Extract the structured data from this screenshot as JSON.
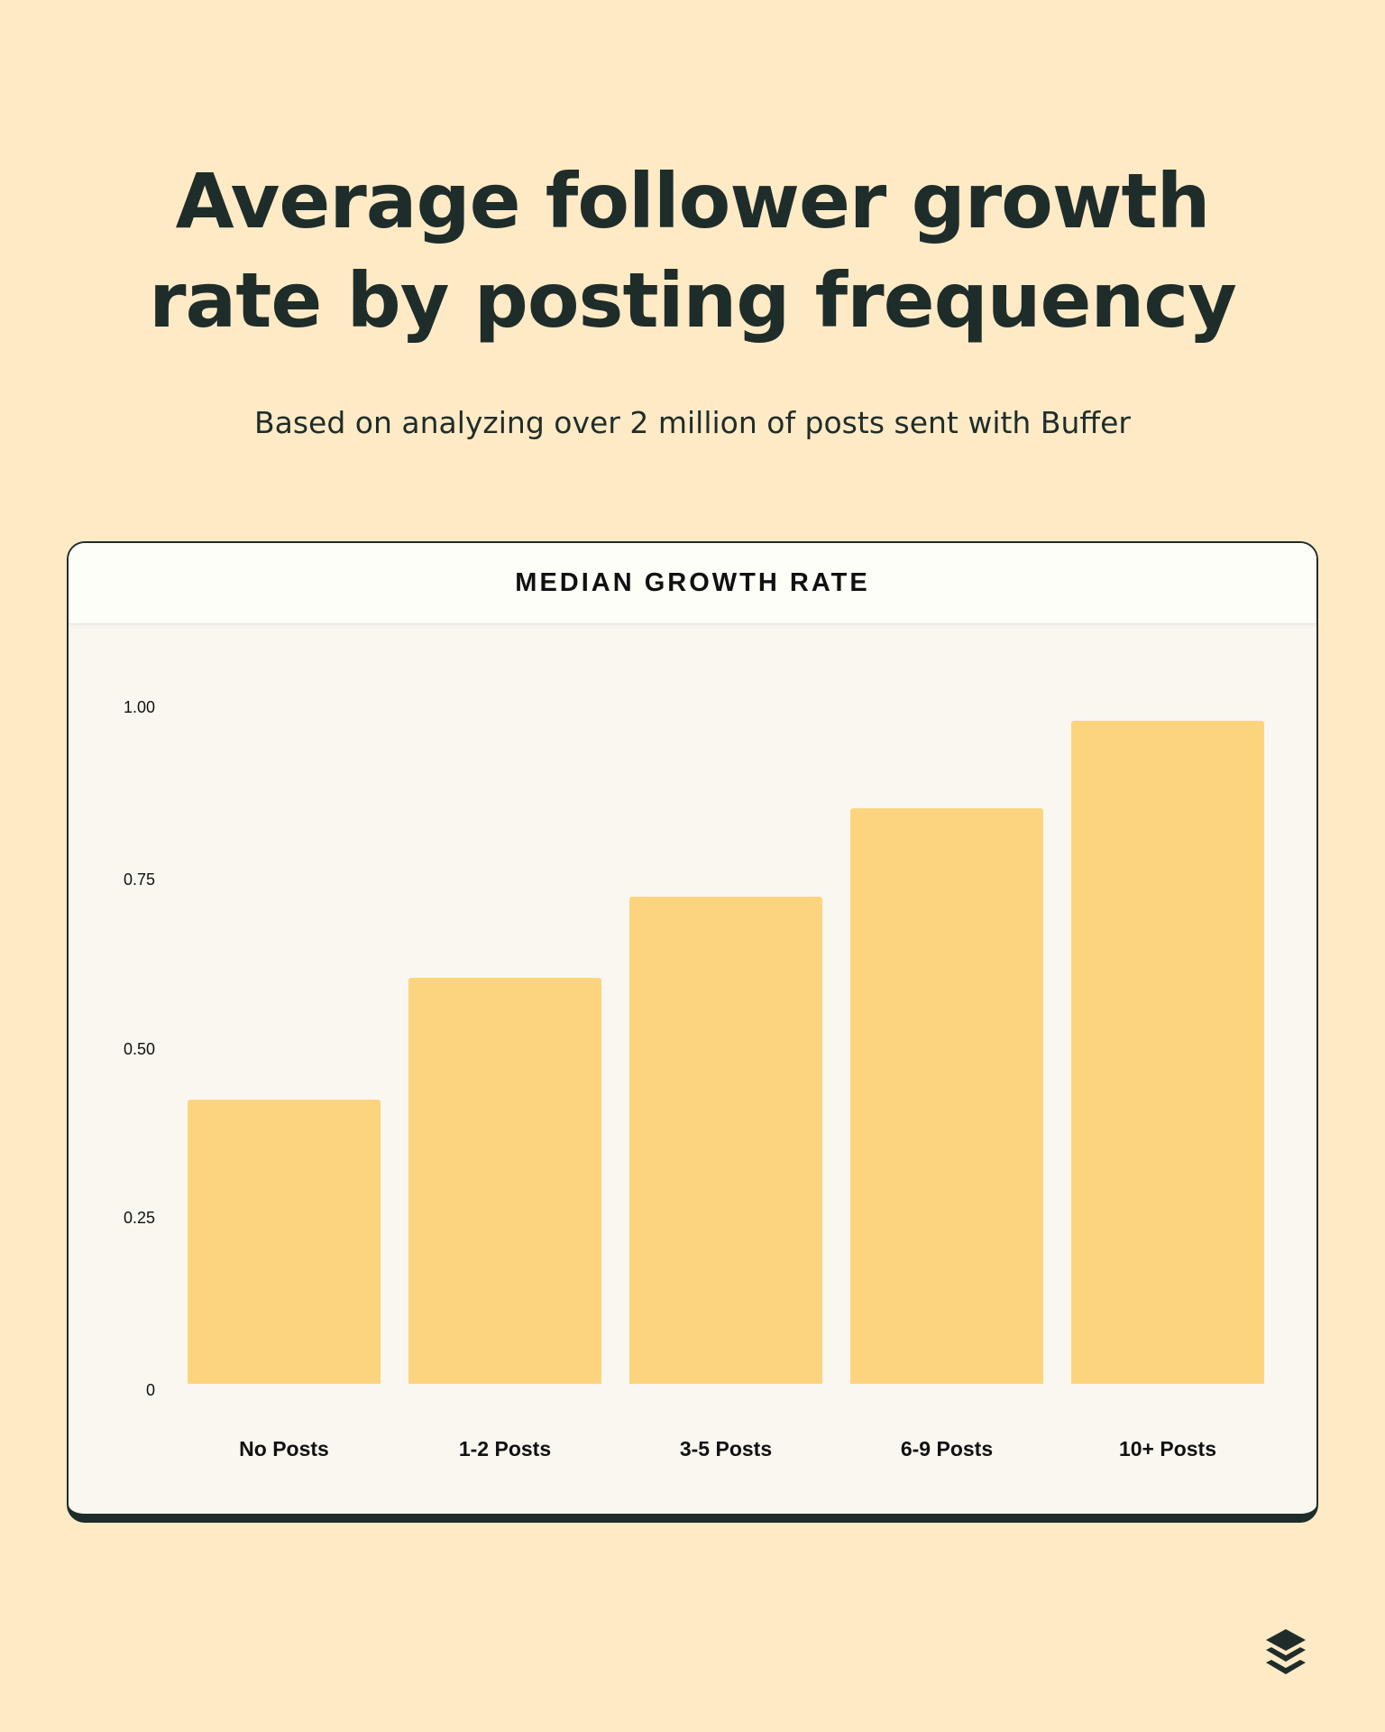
{
  "header": {
    "title_line1": "Average follower growth",
    "title_line2": "rate by posting frequency",
    "subtitle": "Based on analyzing over 2 million of posts sent with Buffer"
  },
  "card": {
    "title": "MEDIAN GROWTH RATE"
  },
  "colors": {
    "background": "#FFEAC6",
    "text": "#1F2D2A",
    "bar": "#FDD47E",
    "card_header_bg": "#FEFEF8",
    "plot_bg": "#F9F7F0"
  },
  "logo": {
    "icon": "buffer-layers-icon"
  },
  "chart_data": {
    "type": "bar",
    "title": "MEDIAN GROWTH RATE",
    "subtitle": "Average follower growth rate by posting frequency",
    "categories": [
      "No Posts",
      "1-2 Posts",
      "3-5 Posts",
      "6-9 Posts",
      "10+ Posts"
    ],
    "values": [
      0.42,
      0.6,
      0.72,
      0.85,
      0.98
    ],
    "xlabel": "",
    "ylabel": "Median growth rate",
    "ylim": [
      0,
      1.0
    ],
    "yticks": [
      "0",
      "0.25",
      "0.50",
      "0.75",
      "1.00"
    ],
    "ytick_values": [
      0,
      0.25,
      0.5,
      0.75,
      1.0
    ],
    "grid": false,
    "legend": null
  }
}
